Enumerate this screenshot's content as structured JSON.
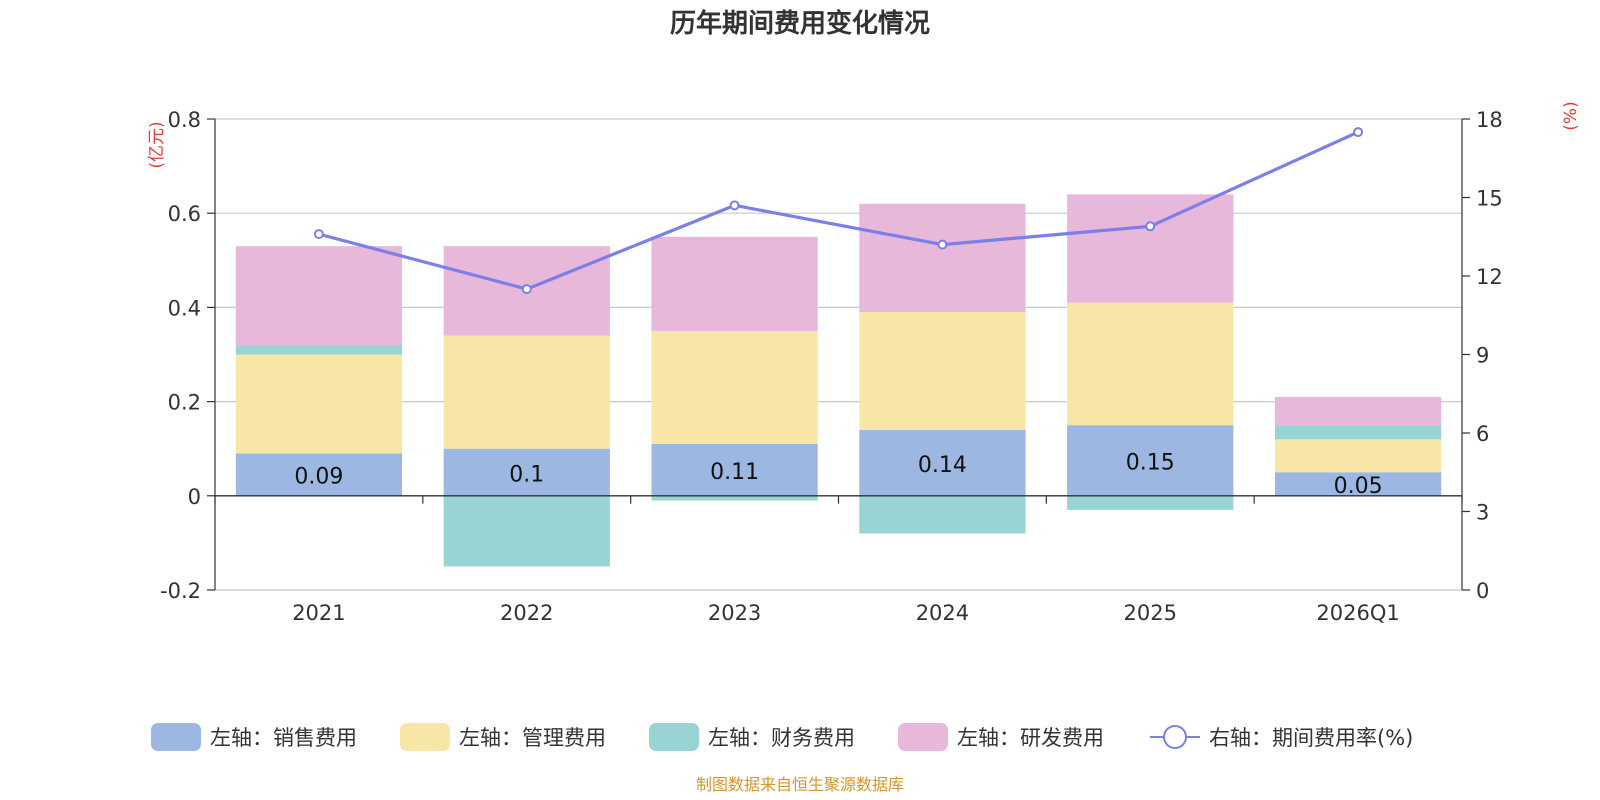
{
  "chart_data": {
    "type": "bar",
    "stacked": true,
    "title": "历年期间费用变化情况",
    "categories": [
      "2021",
      "2022",
      "2023",
      "2024",
      "2025",
      "2026Q1"
    ],
    "left_axis": {
      "unit": "(亿元)",
      "ylim": [
        -0.2,
        0.8
      ],
      "ticks": [
        -0.2,
        0,
        0.2,
        0.4,
        0.6,
        0.8
      ],
      "tick_labels": [
        "-0.2",
        "0",
        "0.2",
        "0.4",
        "0.6",
        "0.8"
      ]
    },
    "right_axis": {
      "unit": "(%)",
      "ylim": [
        0,
        18
      ],
      "ticks": [
        0,
        3,
        6,
        9,
        12,
        15,
        18
      ],
      "tick_labels": [
        "0",
        "3",
        "6",
        "9",
        "12",
        "15",
        "18"
      ]
    },
    "series": [
      {
        "name": "左轴：销售费用",
        "axis": "left",
        "color": "#9bb7e2",
        "values": [
          0.09,
          0.1,
          0.11,
          0.14,
          0.15,
          0.05
        ]
      },
      {
        "name": "左轴：管理费用",
        "axis": "left",
        "color": "#f8e6a6",
        "values": [
          0.21,
          0.24,
          0.24,
          0.25,
          0.26,
          0.07
        ]
      },
      {
        "name": "左轴：财务费用",
        "axis": "left",
        "color": "#98d4d4",
        "values": [
          0.02,
          -0.15,
          -0.01,
          -0.08,
          -0.03,
          0.03
        ]
      },
      {
        "name": "左轴：研发费用",
        "axis": "left",
        "color": "#e8b8da",
        "values": [
          0.21,
          0.19,
          0.2,
          0.23,
          0.23,
          0.06
        ]
      }
    ],
    "line_series": {
      "name": "右轴：期间费用率(%)",
      "axis": "right",
      "color": "#7b7fe8",
      "values": [
        13.6,
        11.5,
        14.7,
        13.2,
        13.9,
        17.5
      ]
    },
    "data_labels": {
      "series": "左轴：销售费用",
      "labels": [
        "0.09",
        "0.1",
        "0.11",
        "0.14",
        "0.15",
        "0.05"
      ]
    },
    "legend_position": "bottom",
    "grid": true
  },
  "source_text": "制图数据来自恒生聚源数据库",
  "colors": {
    "title": "#333333",
    "unit": "#e53935",
    "source": "#d4952c",
    "grid": "#c8c8c8",
    "axis": "#333333"
  }
}
